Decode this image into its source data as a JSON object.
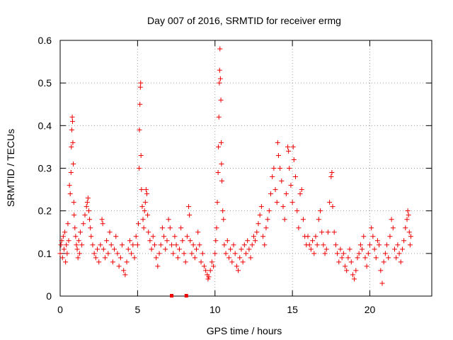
{
  "chart_data": {
    "type": "scatter",
    "title": "Day 007 of 2016, SRMTID for receiver ermg",
    "xlabel": "GPS time / hours",
    "ylabel": "SRMTID / TECUs",
    "xlim": [
      0,
      24
    ],
    "ylim": [
      0,
      0.6
    ],
    "xticks": [
      0,
      5,
      10,
      15,
      20
    ],
    "yticks": [
      0,
      0.1,
      0.2,
      0.3,
      0.4,
      0.5,
      0.6
    ],
    "xtick_labels": [
      "0",
      "5",
      "10",
      "15",
      "20"
    ],
    "ytick_labels": [
      "0",
      "0.1",
      "0.2",
      "0.3",
      "0.4",
      "0.5",
      "0.6"
    ],
    "grid": true,
    "marker": "+",
    "marker_color": "#ee0000",
    "baseline_markers": [
      {
        "x": 7.2,
        "y": 0,
        "marker": "square"
      },
      {
        "x": 8.15,
        "y": 0,
        "marker": "square"
      }
    ],
    "series": [
      {
        "name": "SRMTID",
        "sampled": true,
        "points": [
          [
            0.0,
            0.1
          ],
          [
            0.05,
            0.12
          ],
          [
            0.1,
            0.13
          ],
          [
            0.15,
            0.09
          ],
          [
            0.2,
            0.14
          ],
          [
            0.25,
            0.11
          ],
          [
            0.3,
            0.15
          ],
          [
            0.35,
            0.08
          ],
          [
            0.4,
            0.12
          ],
          [
            0.45,
            0.1
          ],
          [
            0.5,
            0.17
          ],
          [
            0.55,
            0.13
          ],
          [
            0.6,
            0.26
          ],
          [
            0.65,
            0.24
          ],
          [
            0.7,
            0.29
          ],
          [
            0.72,
            0.35
          ],
          [
            0.75,
            0.39
          ],
          [
            0.78,
            0.42
          ],
          [
            0.8,
            0.41
          ],
          [
            0.82,
            0.36
          ],
          [
            0.85,
            0.31
          ],
          [
            0.88,
            0.22
          ],
          [
            0.9,
            0.19
          ],
          [
            0.95,
            0.16
          ],
          [
            1.0,
            0.14
          ],
          [
            1.05,
            0.12
          ],
          [
            1.1,
            0.11
          ],
          [
            1.15,
            0.09
          ],
          [
            1.2,
            0.13
          ],
          [
            1.25,
            0.1
          ],
          [
            1.3,
            0.15
          ],
          [
            1.4,
            0.12
          ],
          [
            1.5,
            0.17
          ],
          [
            1.6,
            0.19
          ],
          [
            1.7,
            0.21
          ],
          [
            1.75,
            0.22
          ],
          [
            1.8,
            0.23
          ],
          [
            1.85,
            0.2
          ],
          [
            1.9,
            0.18
          ],
          [
            1.95,
            0.16
          ],
          [
            2.0,
            0.14
          ],
          [
            2.1,
            0.12
          ],
          [
            2.2,
            0.1
          ],
          [
            2.3,
            0.09
          ],
          [
            2.4,
            0.11
          ],
          [
            2.5,
            0.08
          ],
          [
            2.6,
            0.12
          ],
          [
            2.7,
            0.18
          ],
          [
            2.75,
            0.17
          ],
          [
            2.8,
            0.11
          ],
          [
            2.9,
            0.09
          ],
          [
            3.0,
            0.13
          ],
          [
            3.1,
            0.1
          ],
          [
            3.2,
            0.15
          ],
          [
            3.3,
            0.12
          ],
          [
            3.4,
            0.08
          ],
          [
            3.5,
            0.11
          ],
          [
            3.6,
            0.14
          ],
          [
            3.7,
            0.1
          ],
          [
            3.8,
            0.07
          ],
          [
            3.9,
            0.09
          ],
          [
            4.0,
            0.12
          ],
          [
            4.1,
            0.06
          ],
          [
            4.2,
            0.05
          ],
          [
            4.3,
            0.08
          ],
          [
            4.4,
            0.11
          ],
          [
            4.5,
            0.13
          ],
          [
            4.6,
            0.1
          ],
          [
            4.7,
            0.12
          ],
          [
            4.8,
            0.09
          ],
          [
            4.9,
            0.14
          ],
          [
            5.0,
            0.12
          ],
          [
            5.05,
            0.17
          ],
          [
            5.1,
            0.3
          ],
          [
            5.12,
            0.39
          ],
          [
            5.15,
            0.45
          ],
          [
            5.18,
            0.49
          ],
          [
            5.2,
            0.5
          ],
          [
            5.22,
            0.33
          ],
          [
            5.25,
            0.25
          ],
          [
            5.3,
            0.21
          ],
          [
            5.35,
            0.18
          ],
          [
            5.4,
            0.16
          ],
          [
            5.45,
            0.2
          ],
          [
            5.5,
            0.22
          ],
          [
            5.55,
            0.25
          ],
          [
            5.6,
            0.24
          ],
          [
            5.65,
            0.19
          ],
          [
            5.7,
            0.15
          ],
          [
            5.8,
            0.13
          ],
          [
            5.9,
            0.11
          ],
          [
            6.0,
            0.14
          ],
          [
            6.1,
            0.12
          ],
          [
            6.2,
            0.09
          ],
          [
            6.3,
            0.07
          ],
          [
            6.4,
            0.1
          ],
          [
            6.5,
            0.12
          ],
          [
            6.6,
            0.16
          ],
          [
            6.7,
            0.14
          ],
          [
            6.8,
            0.11
          ],
          [
            6.9,
            0.13
          ],
          [
            7.0,
            0.18
          ],
          [
            7.1,
            0.16
          ],
          [
            7.2,
            0.12
          ],
          [
            7.3,
            0.1
          ],
          [
            7.4,
            0.14
          ],
          [
            7.5,
            0.12
          ],
          [
            7.6,
            0.09
          ],
          [
            7.7,
            0.11
          ],
          [
            7.8,
            0.16
          ],
          [
            7.9,
            0.13
          ],
          [
            8.0,
            0.1
          ],
          [
            8.1,
            0.08
          ],
          [
            8.2,
            0.14
          ],
          [
            8.3,
            0.21
          ],
          [
            8.35,
            0.19
          ],
          [
            8.4,
            0.13
          ],
          [
            8.5,
            0.1
          ],
          [
            8.6,
            0.12
          ],
          [
            8.7,
            0.09
          ],
          [
            8.8,
            0.11
          ],
          [
            8.9,
            0.15
          ],
          [
            9.0,
            0.12
          ],
          [
            9.1,
            0.08
          ],
          [
            9.2,
            0.1
          ],
          [
            9.3,
            0.07
          ],
          [
            9.4,
            0.06
          ],
          [
            9.5,
            0.05
          ],
          [
            9.55,
            0.04
          ],
          [
            9.6,
            0.045
          ],
          [
            9.7,
            0.06
          ],
          [
            9.8,
            0.08
          ],
          [
            9.9,
            0.07
          ],
          [
            10.0,
            0.1
          ],
          [
            10.05,
            0.13
          ],
          [
            10.1,
            0.16
          ],
          [
            10.15,
            0.22
          ],
          [
            10.2,
            0.29
          ],
          [
            10.22,
            0.35
          ],
          [
            10.25,
            0.42
          ],
          [
            10.28,
            0.5
          ],
          [
            10.3,
            0.53
          ],
          [
            10.32,
            0.58
          ],
          [
            10.35,
            0.51
          ],
          [
            10.38,
            0.46
          ],
          [
            10.4,
            0.36
          ],
          [
            10.42,
            0.31
          ],
          [
            10.45,
            0.27
          ],
          [
            10.5,
            0.2
          ],
          [
            10.55,
            0.18
          ],
          [
            10.6,
            0.12
          ],
          [
            10.7,
            0.1
          ],
          [
            10.8,
            0.13
          ],
          [
            10.9,
            0.09
          ],
          [
            11.0,
            0.11
          ],
          [
            11.1,
            0.08
          ],
          [
            11.2,
            0.12
          ],
          [
            11.3,
            0.1
          ],
          [
            11.4,
            0.07
          ],
          [
            11.5,
            0.06
          ],
          [
            11.6,
            0.09
          ],
          [
            11.7,
            0.11
          ],
          [
            11.8,
            0.08
          ],
          [
            11.9,
            0.12
          ],
          [
            12.0,
            0.1
          ],
          [
            12.1,
            0.13
          ],
          [
            12.2,
            0.11
          ],
          [
            12.3,
            0.09
          ],
          [
            12.4,
            0.12
          ],
          [
            12.5,
            0.14
          ],
          [
            12.6,
            0.13
          ],
          [
            12.7,
            0.15
          ],
          [
            12.8,
            0.17
          ],
          [
            12.9,
            0.19
          ],
          [
            13.0,
            0.21
          ],
          [
            13.1,
            0.14
          ],
          [
            13.2,
            0.12
          ],
          [
            13.3,
            0.16
          ],
          [
            13.4,
            0.18
          ],
          [
            13.5,
            0.2
          ],
          [
            13.6,
            0.24
          ],
          [
            13.7,
            0.28
          ],
          [
            13.8,
            0.3
          ],
          [
            13.9,
            0.25
          ],
          [
            14.0,
            0.22
          ],
          [
            14.05,
            0.36
          ],
          [
            14.1,
            0.33
          ],
          [
            14.2,
            0.3
          ],
          [
            14.3,
            0.27
          ],
          [
            14.4,
            0.21
          ],
          [
            14.5,
            0.18
          ],
          [
            14.6,
            0.24
          ],
          [
            14.7,
            0.35
          ],
          [
            14.75,
            0.34
          ],
          [
            14.8,
            0.3
          ],
          [
            14.9,
            0.26
          ],
          [
            15.0,
            0.22
          ],
          [
            15.05,
            0.35
          ],
          [
            15.1,
            0.32
          ],
          [
            15.2,
            0.28
          ],
          [
            15.3,
            0.2
          ],
          [
            15.4,
            0.16
          ],
          [
            15.5,
            0.24
          ],
          [
            15.6,
            0.25
          ],
          [
            15.7,
            0.18
          ],
          [
            15.8,
            0.14
          ],
          [
            15.9,
            0.12
          ],
          [
            16.0,
            0.14
          ],
          [
            16.1,
            0.12
          ],
          [
            16.2,
            0.11
          ],
          [
            16.3,
            0.13
          ],
          [
            16.4,
            0.1
          ],
          [
            16.5,
            0.14
          ],
          [
            16.6,
            0.12
          ],
          [
            16.7,
            0.18
          ],
          [
            16.8,
            0.2
          ],
          [
            16.9,
            0.15
          ],
          [
            17.0,
            0.12
          ],
          [
            17.1,
            0.1
          ],
          [
            17.2,
            0.11
          ],
          [
            17.3,
            0.15
          ],
          [
            17.4,
            0.22
          ],
          [
            17.5,
            0.28
          ],
          [
            17.55,
            0.29
          ],
          [
            17.6,
            0.21
          ],
          [
            17.7,
            0.15
          ],
          [
            17.8,
            0.12
          ],
          [
            17.9,
            0.1
          ],
          [
            18.0,
            0.08
          ],
          [
            18.1,
            0.11
          ],
          [
            18.2,
            0.09
          ],
          [
            18.3,
            0.1
          ],
          [
            18.4,
            0.07
          ],
          [
            18.5,
            0.06
          ],
          [
            18.6,
            0.09
          ],
          [
            18.7,
            0.11
          ],
          [
            18.8,
            0.08
          ],
          [
            18.9,
            0.05
          ],
          [
            19.0,
            0.04
          ],
          [
            19.1,
            0.06
          ],
          [
            19.2,
            0.09
          ],
          [
            19.3,
            0.1
          ],
          [
            19.4,
            0.12
          ],
          [
            19.5,
            0.11
          ],
          [
            19.6,
            0.14
          ],
          [
            19.7,
            0.09
          ],
          [
            19.8,
            0.07
          ],
          [
            19.9,
            0.1
          ],
          [
            20.0,
            0.12
          ],
          [
            20.1,
            0.16
          ],
          [
            20.2,
            0.14
          ],
          [
            20.3,
            0.11
          ],
          [
            20.4,
            0.09
          ],
          [
            20.5,
            0.13
          ],
          [
            20.6,
            0.12
          ],
          [
            20.7,
            0.06
          ],
          [
            20.8,
            0.03
          ],
          [
            20.9,
            0.08
          ],
          [
            21.0,
            0.1
          ],
          [
            21.1,
            0.12
          ],
          [
            21.2,
            0.09
          ],
          [
            21.3,
            0.14
          ],
          [
            21.4,
            0.18
          ],
          [
            21.5,
            0.16
          ],
          [
            21.6,
            0.11
          ],
          [
            21.7,
            0.09
          ],
          [
            21.8,
            0.12
          ],
          [
            21.9,
            0.1
          ],
          [
            22.0,
            0.08
          ],
          [
            22.1,
            0.11
          ],
          [
            22.2,
            0.13
          ],
          [
            22.3,
            0.16
          ],
          [
            22.4,
            0.18
          ],
          [
            22.45,
            0.2
          ],
          [
            22.5,
            0.19
          ],
          [
            22.55,
            0.15
          ],
          [
            22.6,
            0.12
          ],
          [
            22.65,
            0.14
          ]
        ]
      }
    ]
  }
}
